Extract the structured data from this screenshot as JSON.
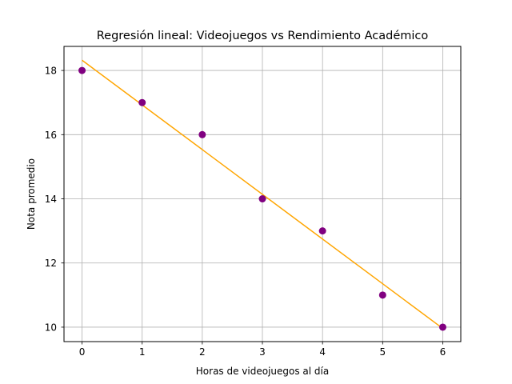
{
  "chart_data": {
    "type": "scatter",
    "title": "Regresión lineal: Videojuegos vs Rendimiento Académico",
    "xlabel": "Horas de videojuegos al día",
    "ylabel": "Nota promedio",
    "xlim": [
      -0.3,
      6.3
    ],
    "ylim": [
      9.55,
      18.75
    ],
    "xticks": [
      0,
      1,
      2,
      3,
      4,
      5,
      6
    ],
    "yticks": [
      10,
      12,
      14,
      16,
      18
    ],
    "grid": true,
    "series": [
      {
        "type": "scatter",
        "color": "#800080",
        "x": [
          0,
          1,
          2,
          3,
          4,
          5,
          6
        ],
        "y": [
          18,
          17,
          16,
          14,
          13,
          11,
          10
        ]
      },
      {
        "type": "line",
        "color": "#ffa500",
        "x": [
          0,
          6
        ],
        "y": [
          18.32,
          9.96
        ]
      }
    ]
  }
}
